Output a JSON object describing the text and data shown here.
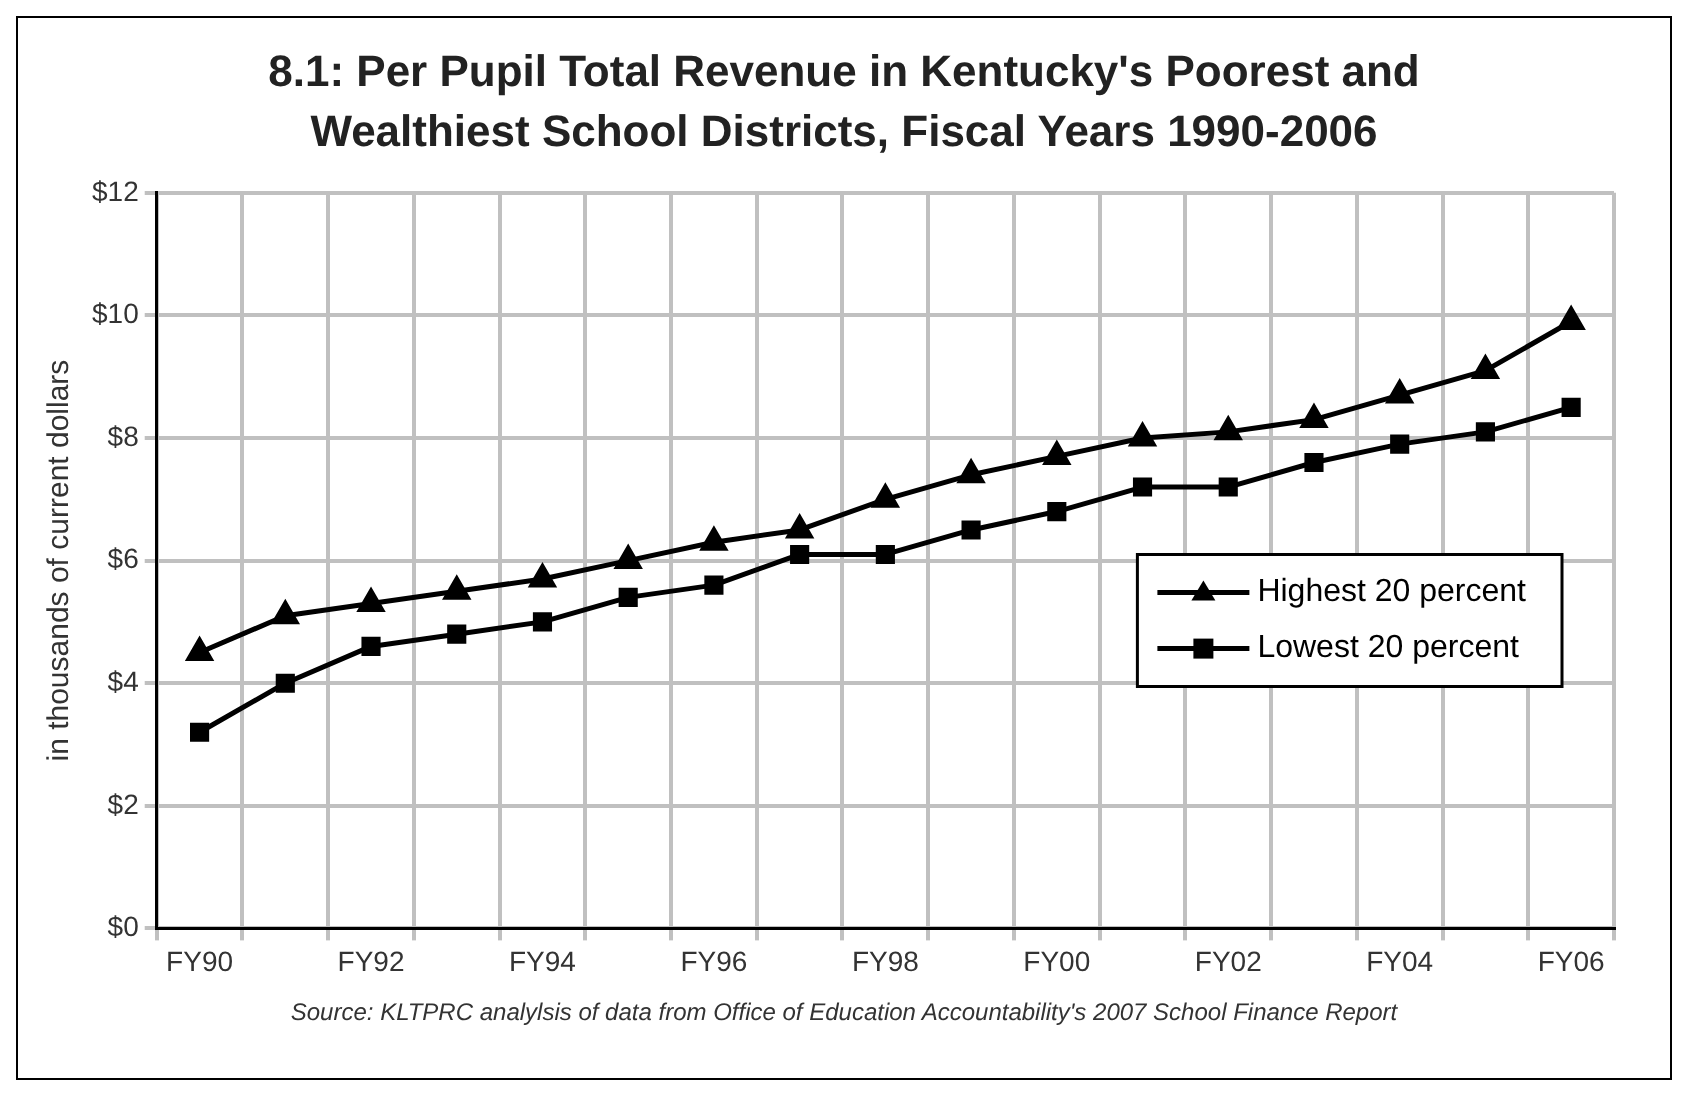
{
  "chart_data": {
    "type": "line",
    "title": "8.1:  Per Pupil Total Revenue in Kentucky's Poorest and Wealthiest School Districts, Fiscal Years 1990-2006",
    "ylabel": "in thousands of current dollars",
    "annotations": [
      "Source: KLTPRC analylsis of data from Office of Education Accountability's 2007 School Finance Report"
    ],
    "categories": [
      "FY90",
      null,
      "FY92",
      null,
      "FY94",
      null,
      "FY96",
      null,
      "FY98",
      null,
      "FY00",
      null,
      "FY02",
      null,
      "FY04",
      null,
      "FY06"
    ],
    "series": [
      {
        "name": "Highest 20 percent",
        "color": "#000000",
        "marker": "triangle",
        "values": [
          4.5,
          5.1,
          5.3,
          5.5,
          5.7,
          6.0,
          6.3,
          6.5,
          7.0,
          7.4,
          7.7,
          8.0,
          8.1,
          8.3,
          8.7,
          9.1,
          9.9
        ]
      },
      {
        "name": "Lowest 20 percent",
        "color": "#000000",
        "marker": "square",
        "values": [
          3.2,
          4.0,
          4.6,
          4.8,
          5.0,
          5.4,
          5.6,
          6.1,
          6.1,
          6.5,
          6.8,
          7.2,
          7.2,
          7.6,
          7.9,
          8.1,
          8.5
        ]
      }
    ],
    "ylim": [
      0,
      12
    ],
    "yticks": [
      {
        "value": 0,
        "label": "$0"
      },
      {
        "value": 2,
        "label": "$2"
      },
      {
        "value": 4,
        "label": "$4"
      },
      {
        "value": 6,
        "label": "$6"
      },
      {
        "value": 8,
        "label": "$8"
      },
      {
        "value": 10,
        "label": "$10"
      },
      {
        "value": 12,
        "label": "$12"
      }
    ],
    "grid": true,
    "legend": "right",
    "line_style": "solid"
  }
}
